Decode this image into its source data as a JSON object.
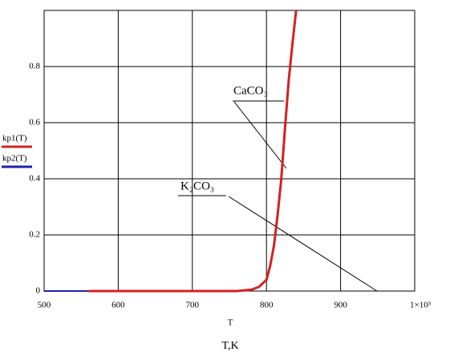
{
  "chart_data": {
    "type": "line",
    "x": [
      500,
      560,
      600,
      700,
      760,
      780,
      790,
      800,
      805,
      810,
      815,
      820,
      825,
      830,
      835,
      840
    ],
    "series": [
      {
        "name": "kp2(T)",
        "color": "#1f1fa8",
        "values": [
          0,
          0,
          null,
          null,
          null,
          null,
          null,
          null,
          null,
          null,
          null,
          null,
          null,
          null,
          null,
          null
        ]
      },
      {
        "name": "kp1(T)",
        "color": "#d42020",
        "values": [
          null,
          0,
          0,
          0,
          0,
          0.005,
          0.015,
          0.04,
          0.09,
          0.16,
          0.27,
          0.4,
          0.58,
          0.75,
          0.88,
          1.0
        ]
      }
    ],
    "xlim": [
      500,
      1000
    ],
    "xticks": [
      500,
      600,
      700,
      800,
      900,
      {
        "value": 1000,
        "label": "1×10³"
      }
    ],
    "ylim": [
      0,
      1
    ],
    "yticks": [
      0,
      0.2,
      0.4,
      0.6,
      0.8
    ],
    "grid": true,
    "xlabel": "T",
    "caption": "T,K",
    "annotations": [
      "CaCO₃",
      "K₂CO₃"
    ]
  }
}
